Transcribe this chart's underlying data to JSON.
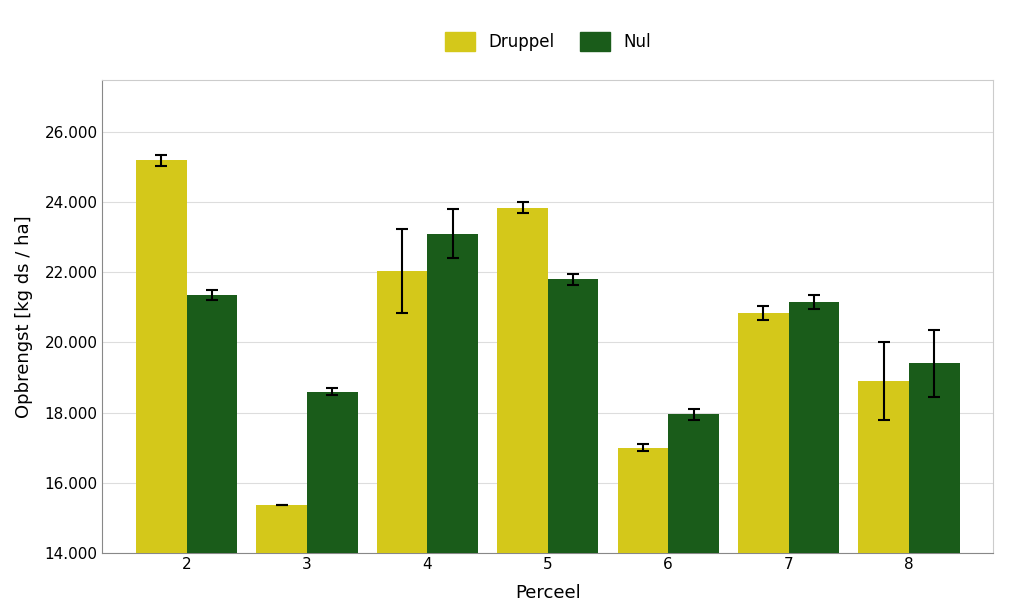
{
  "categories": [
    2,
    3,
    4,
    5,
    6,
    7,
    8
  ],
  "druppel_values": [
    25200,
    15350,
    22050,
    23850,
    17000,
    20850,
    18900
  ],
  "nul_values": [
    21350,
    18600,
    23100,
    21800,
    17950,
    21150,
    19400
  ],
  "druppel_errors": [
    150,
    0,
    1200,
    150,
    100,
    200,
    1100
  ],
  "nul_errors": [
    150,
    100,
    700,
    150,
    150,
    200,
    950
  ],
  "druppel_color": "#d4c81a",
  "nul_color": "#1a5c1a",
  "bar_width": 0.42,
  "xlabel": "Perceel",
  "ylabel": "Opbrengst [kg ds / ha]",
  "ylim": [
    14000,
    27500
  ],
  "yticks": [
    14000,
    16000,
    18000,
    20000,
    22000,
    24000,
    26000
  ],
  "ytick_labels": [
    "14.000",
    "16.000",
    "18.000",
    "20.000",
    "22.000",
    "24.000",
    "26.000"
  ],
  "legend_druppel": "Druppel",
  "legend_nul": "Nul",
  "background_color": "#ffffff",
  "plot_background": "#ffffff",
  "grid_color": "#dddddd",
  "axis_fontsize": 13,
  "tick_fontsize": 11,
  "legend_fontsize": 12
}
